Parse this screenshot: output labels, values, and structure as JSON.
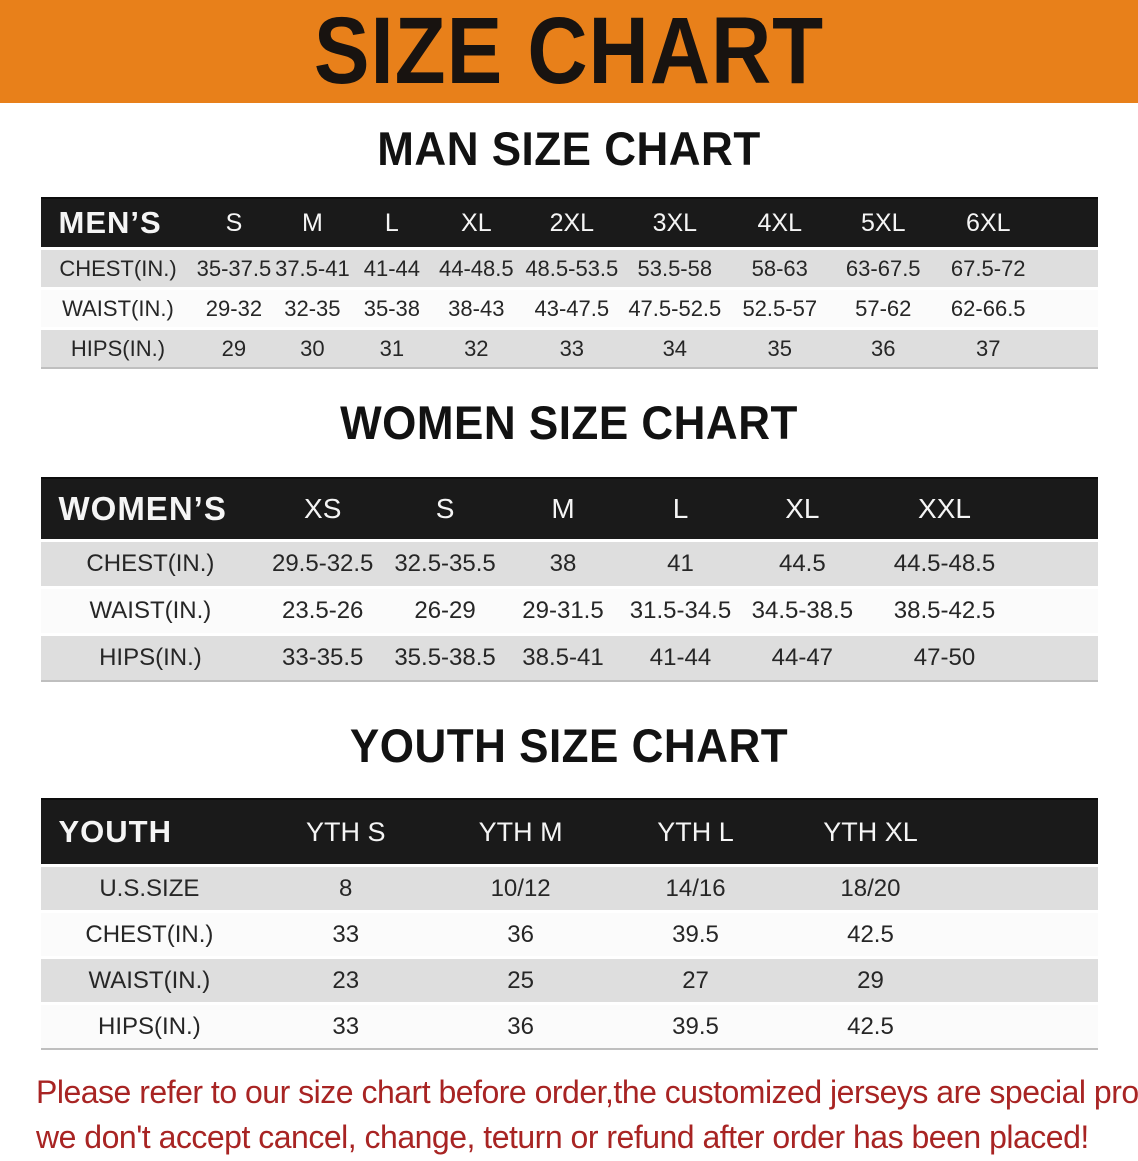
{
  "banner": {
    "title": "SIZE CHART",
    "bg_color": "#E8801A"
  },
  "sections": {
    "men": {
      "heading": "MAN SIZE CHART",
      "table": {
        "label": "MEN’S",
        "columns": [
          "S",
          "M",
          "L",
          "XL",
          "2XL",
          "3XL",
          "4XL",
          "5XL",
          "6XL"
        ],
        "rows": [
          {
            "label": "CHEST(IN.)",
            "values": [
              "35-37.5",
              "37.5-41",
              "41-44",
              "44-48.5",
              "48.5-53.5",
              "53.5-58",
              "58-63",
              "63-67.5",
              "67.5-72"
            ]
          },
          {
            "label": "WAIST(IN.)",
            "values": [
              "29-32",
              "32-35",
              "35-38",
              "38-43",
              "43-47.5",
              "47.5-52.5",
              "52.5-57",
              "57-62",
              "62-66.5"
            ]
          },
          {
            "label": "HIPS(IN.)",
            "values": [
              "29",
              "30",
              "31",
              "32",
              "33",
              "34",
              "35",
              "36",
              "37"
            ]
          }
        ]
      }
    },
    "women": {
      "heading": "WOMEN SIZE CHART",
      "table": {
        "label": "WOMEN’S",
        "columns": [
          "XS",
          "S",
          "M",
          "L",
          "XL",
          "XXL"
        ],
        "rows": [
          {
            "label": "CHEST(IN.)",
            "values": [
              "29.5-32.5",
              "32.5-35.5",
              "38",
              "41",
              "44.5",
              "44.5-48.5"
            ]
          },
          {
            "label": "WAIST(IN.)",
            "values": [
              "23.5-26",
              "26-29",
              "29-31.5",
              "31.5-34.5",
              "34.5-38.5",
              "38.5-42.5"
            ]
          },
          {
            "label": "HIPS(IN.)",
            "values": [
              "33-35.5",
              "35.5-38.5",
              "38.5-41",
              "41-44",
              "44-47",
              "47-50"
            ]
          }
        ]
      }
    },
    "youth": {
      "heading": "YOUTH SIZE CHART",
      "table": {
        "label": "YOUTH",
        "columns": [
          "YTH S",
          "YTH M",
          "YTH L",
          "YTH XL"
        ],
        "rows": [
          {
            "label": "U.S.SIZE",
            "values": [
              "8",
              "10/12",
              "14/16",
              "18/20"
            ]
          },
          {
            "label": "CHEST(IN.)",
            "values": [
              "33",
              "36",
              "39.5",
              "42.5"
            ]
          },
          {
            "label": "WAIST(IN.)",
            "values": [
              "23",
              "25",
              "27",
              "29"
            ]
          },
          {
            "label": "HIPS(IN.)",
            "values": [
              "33",
              "36",
              "39.5",
              "42.5"
            ]
          }
        ]
      }
    }
  },
  "footer": {
    "color": "#A82423",
    "lines": [
      "Please refer to our size chart before order,the customized jerseys are special products,",
      "we don't accept cancel, change, teturn or refund after order has been placed!"
    ]
  },
  "table_colors": {
    "header_bg": "#1A1A1A",
    "row_shaded": "#DEDEDE",
    "row_plain": "#FBFBFB"
  }
}
